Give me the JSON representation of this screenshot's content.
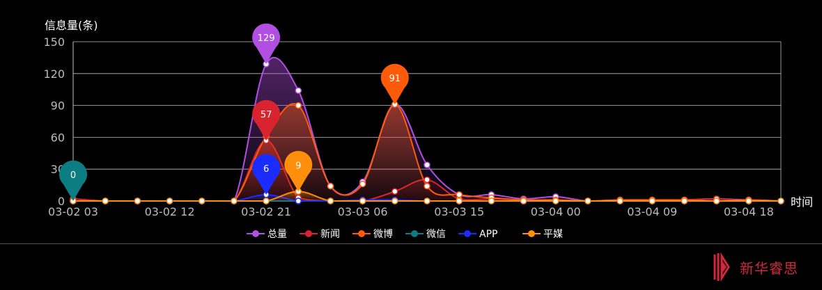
{
  "chart_data": {
    "type": "area",
    "ylabel": "信息量(条)",
    "xlabel": "时间",
    "ylim": [
      0,
      150
    ],
    "yticks": [
      0,
      30,
      60,
      90,
      120,
      150
    ],
    "x": [
      "03-02 03",
      "03-02 06",
      "03-02 09",
      "03-02 12",
      "03-02 15",
      "03-02 18",
      "03-02 21",
      "03-03 00",
      "03-03 03",
      "03-03 06",
      "03-03 09",
      "03-03 12",
      "03-03 15",
      "03-03 18",
      "03-03 21",
      "03-04 00",
      "03-04 03",
      "03-04 06",
      "03-04 09",
      "03-04 12",
      "03-04 15",
      "03-04 18",
      "03-04 21"
    ],
    "xtick_labels": [
      "03-02 03",
      "03-02 12",
      "03-02 21",
      "03-03 06",
      "03-03 15",
      "03-04 00",
      "03-04 09",
      "03-04 18"
    ],
    "grid": true,
    "legend_position": "bottom",
    "series": [
      {
        "name": "总量",
        "color": "#b24fe3",
        "values": [
          2,
          0,
          0,
          0,
          0,
          0,
          129,
          104,
          14,
          18,
          91,
          34,
          6,
          6,
          2,
          4,
          0,
          1,
          1,
          1,
          2,
          1,
          0
        ]
      },
      {
        "name": "新闻",
        "color": "#d9232f",
        "values": [
          2,
          0,
          0,
          0,
          0,
          0,
          57,
          3,
          0,
          0,
          9,
          20,
          2,
          2,
          1,
          1,
          0,
          0,
          0,
          1,
          2,
          0,
          0
        ]
      },
      {
        "name": "微博",
        "color": "#ff5a0a",
        "values": [
          0,
          0,
          0,
          0,
          0,
          0,
          61,
          90,
          14,
          16,
          91,
          14,
          6,
          3,
          1,
          1,
          0,
          1,
          1,
          1,
          0,
          1,
          0
        ]
      },
      {
        "name": "微信",
        "color": "#0c7d82",
        "values": [
          0,
          0,
          0,
          0,
          0,
          0,
          0,
          0,
          0,
          0,
          0,
          0,
          0,
          0,
          0,
          0,
          0,
          0,
          0,
          0,
          0,
          0,
          0
        ]
      },
      {
        "name": "APP",
        "color": "#1a2cff",
        "values": [
          0,
          0,
          0,
          0,
          0,
          0,
          6,
          0,
          0,
          1,
          1,
          0,
          0,
          0,
          0,
          0,
          0,
          0,
          0,
          0,
          0,
          0,
          0
        ]
      },
      {
        "name": "平媒",
        "color": "#ff8e0a",
        "values": [
          0,
          0,
          0,
          0,
          0,
          0,
          0,
          9,
          0,
          0,
          0,
          0,
          0,
          0,
          0,
          0,
          0,
          0,
          0,
          0,
          0,
          0,
          0
        ]
      }
    ],
    "annotations": [
      {
        "series": "总量",
        "label": "129",
        "index": 6,
        "value": 129
      },
      {
        "series": "新闻",
        "label": "57",
        "index": 6,
        "value": 57
      },
      {
        "series": "微博",
        "label": "91",
        "index": 10,
        "value": 91
      },
      {
        "series": "微信",
        "label": "0",
        "index": 0,
        "value": 0
      },
      {
        "series": "APP",
        "label": "6",
        "index": 6,
        "value": 6
      },
      {
        "series": "平媒",
        "label": "9",
        "index": 7,
        "value": 9
      }
    ]
  },
  "brand": {
    "name": "新华睿思",
    "color": "#d0273c"
  }
}
